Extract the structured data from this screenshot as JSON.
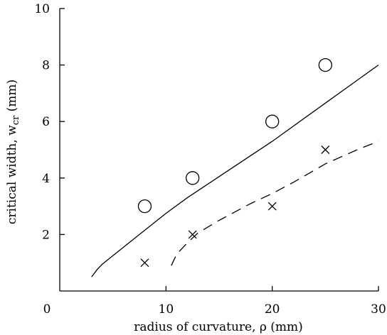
{
  "chart_data": {
    "type": "scatter",
    "xlabel": "radius of curvature, ρ (mm)",
    "ylabel": "critical width, w",
    "ylabel_sub": "cr",
    "ylabel_unit": " (mm)",
    "xlim": [
      0,
      30
    ],
    "ylim": [
      0,
      10
    ],
    "xticks": [
      0,
      10,
      20,
      30
    ],
    "yticks": [
      2,
      4,
      6,
      8,
      10
    ],
    "grid": false,
    "series": [
      {
        "marker": "circle",
        "points": [
          [
            8,
            3
          ],
          [
            12.5,
            4
          ],
          [
            20,
            6
          ],
          [
            25,
            8
          ]
        ]
      },
      {
        "marker": "cross",
        "points": [
          [
            8,
            1
          ],
          [
            12.5,
            2
          ],
          [
            20,
            3
          ],
          [
            25,
            5
          ]
        ]
      },
      {
        "style": "solid",
        "points": [
          [
            3,
            0.5
          ],
          [
            3.5,
            0.75
          ],
          [
            4,
            0.95
          ],
          [
            5,
            1.25
          ],
          [
            6,
            1.55
          ],
          [
            8,
            2.15
          ],
          [
            10,
            2.75
          ],
          [
            12,
            3.3
          ],
          [
            15,
            4.05
          ],
          [
            20,
            5.3
          ],
          [
            25,
            6.65
          ],
          [
            30,
            8.0
          ]
        ]
      },
      {
        "style": "dashed",
        "points": [
          [
            10.5,
            0.9
          ],
          [
            11,
            1.3
          ],
          [
            12,
            1.7
          ],
          [
            13,
            2.05
          ],
          [
            15,
            2.5
          ],
          [
            18,
            3.1
          ],
          [
            20,
            3.45
          ],
          [
            22,
            3.85
          ],
          [
            25,
            4.5
          ],
          [
            28,
            5.0
          ],
          [
            30,
            5.3
          ]
        ]
      }
    ]
  }
}
